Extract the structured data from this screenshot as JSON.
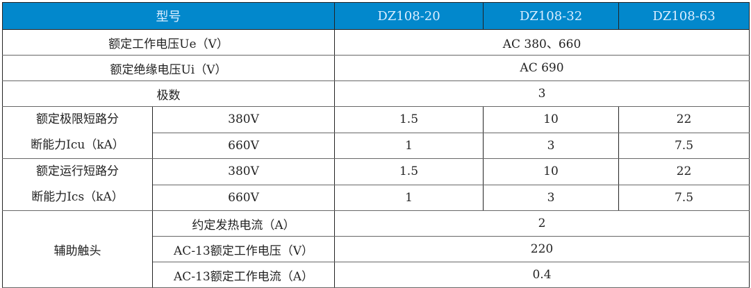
{
  "header": {
    "model_label": "型号",
    "models": [
      "DZ108-20",
      "DZ108-32",
      "DZ108-63"
    ]
  },
  "rows": {
    "rated_voltage": {
      "label": "额定工作电压Ue（V）",
      "value": "AC 380、660"
    },
    "insulation_voltage": {
      "label": "额定绝缘电压Ui（V）",
      "value": "AC 690"
    },
    "poles": {
      "label": "极数",
      "value": "3"
    },
    "icu": {
      "label_line1": "额定极限短路分",
      "label_line2": "断能力Icu（kA）",
      "sub": [
        {
          "voltage": "380V",
          "values": [
            "1.5",
            "10",
            "22"
          ]
        },
        {
          "voltage": "660V",
          "values": [
            "1",
            "3",
            "7.5"
          ]
        }
      ]
    },
    "ics": {
      "label_line1": "额定运行短路分",
      "label_line2": "断能力Ics（kA）",
      "sub": [
        {
          "voltage": "380V",
          "values": [
            "1.5",
            "10",
            "22"
          ]
        },
        {
          "voltage": "660V",
          "values": [
            "1",
            "3",
            "7.5"
          ]
        }
      ]
    },
    "aux": {
      "label": "辅助触头",
      "sub": [
        {
          "label": "约定发热电流（A）",
          "value": "2"
        },
        {
          "label": "AC-13额定工作电压（V）",
          "value": "220"
        },
        {
          "label": "AC-13额定工作电流（A）",
          "value": "0.4"
        }
      ]
    }
  },
  "colors": {
    "header_bg": "#0288cc"
  }
}
